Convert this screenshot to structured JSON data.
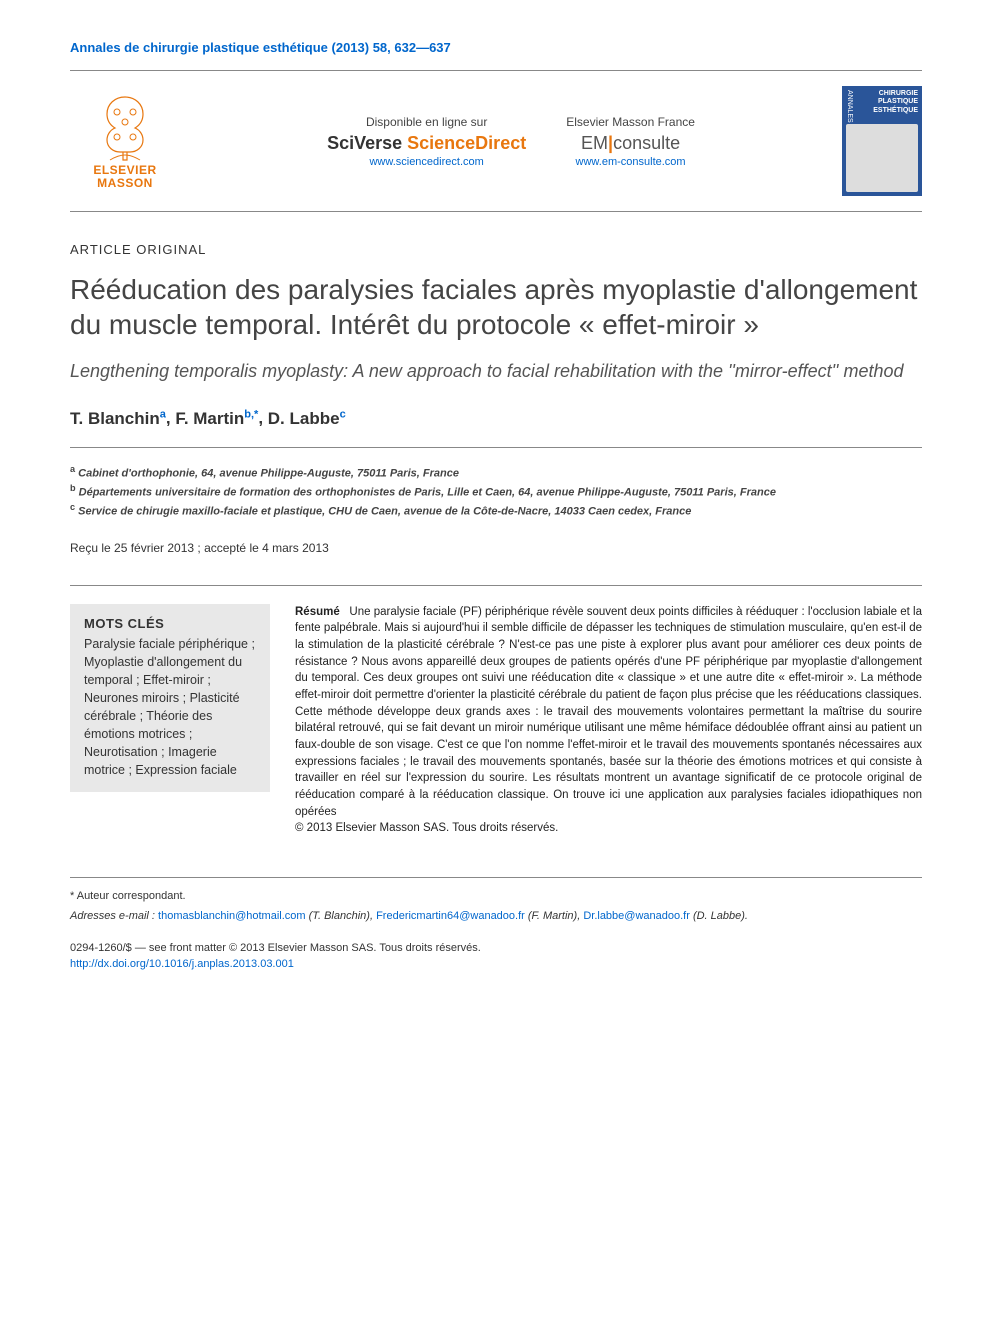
{
  "journal_ref": "Annales de chirurgie plastique esthétique (2013) 58, 632—637",
  "header": {
    "publisher_name_1": "ELSEVIER",
    "publisher_name_2": "MASSON",
    "col1": {
      "label": "Disponible en ligne sur",
      "brand_pre": "SciVerse ",
      "brand_post": "ScienceDirect",
      "url": "www.sciencedirect.com"
    },
    "col2": {
      "label": "Elsevier Masson France",
      "em_text_1": "EM",
      "em_text_2": "consulte",
      "url": "www.em-consulte.com"
    },
    "cover": {
      "annales": "ANNALES",
      "title": "CHIRURGIE PLASTIQUE ESTHÉTIQUE"
    }
  },
  "article_type": "ARTICLE ORIGINAL",
  "title": "Rééducation des paralysies faciales après myoplastie d'allongement du muscle temporal. Intérêt du protocole « effet-miroir »",
  "subtitle": "Lengthening temporalis myoplasty: A new approach to facial rehabilitation with the ''mirror-effect'' method",
  "authors": [
    {
      "name": "T. Blanchin",
      "sup": "a"
    },
    {
      "name": "F. Martin",
      "sup": "b,*"
    },
    {
      "name": "D. Labbe",
      "sup": "c"
    }
  ],
  "affiliations": [
    {
      "sup": "a",
      "text": "Cabinet d'orthophonie, 64, avenue Philippe-Auguste, 75011 Paris, France"
    },
    {
      "sup": "b",
      "text": "Départements universitaire de formation des orthophonistes de Paris, Lille et Caen, 64, avenue Philippe-Auguste, 75011 Paris, France"
    },
    {
      "sup": "c",
      "text": "Service de chirugie maxillo-faciale et plastique, CHU de Caen, avenue de la Côte-de-Nacre, 14033 Caen cedex, France"
    }
  ],
  "dates": "Reçu le 25 février 2013 ; accepté le 4 mars 2013",
  "keywords": {
    "title": "MOTS CLÉS",
    "items": "Paralysie faciale périphérique ; Myoplastie d'allongement du temporal ; Effet-miroir ; Neurones miroirs ; Plasticité cérébrale ; Théorie des émotions motrices ; Neurotisation ; Imagerie motrice ; Expression faciale"
  },
  "abstract": {
    "label": "Résumé",
    "text": "Une paralysie faciale (PF) périphérique révèle souvent deux points difficiles à rééduquer : l'occlusion labiale et la fente palpébrale. Mais si aujourd'hui il semble difficile de dépasser les techniques de stimulation musculaire, qu'en est-il de la stimulation de la plasticité cérébrale ? N'est-ce pas une piste à explorer plus avant pour améliorer ces deux points de résistance ? Nous avons appareillé deux groupes de patients opérés d'une PF périphérique par myoplastie d'allongement du temporal. Ces deux groupes ont suivi une rééducation dite « classique » et une autre dite « effet-miroir ». La méthode effet-miroir doit permettre d'orienter la plasticité cérébrale du patient de façon plus précise que les rééducations classiques. Cette méthode développe deux grands axes : le travail des mouvements volontaires permettant la maîtrise du sourire bilatéral retrouvé, qui se fait devant un miroir numérique utilisant une même hémiface dédoublée offrant ainsi au patient un faux-double de son visage. C'est ce que l'on nomme l'effet-miroir et le travail des mouvements spontanés nécessaires aux expressions faciales ; le travail des mouvements spontanés, basée sur la théorie des émotions motrices et qui consiste à travailler en réel sur l'expression du sourire. Les résultats montrent un avantage significatif de ce protocole original de rééducation comparé à la rééducation classique. On trouve ici une application aux paralysies faciales idiopathiques non opérées",
    "copyright": "© 2013 Elsevier Masson SAS. Tous droits réservés."
  },
  "footer": {
    "corresp": "* Auteur correspondant.",
    "emails_label": "Adresses e-mail :",
    "emails": [
      {
        "addr": "thomasblanchin@hotmail.com",
        "who": "(T. Blanchin)"
      },
      {
        "addr": "Fredericmartin64@wanadoo.fr",
        "who": "(F. Martin)"
      },
      {
        "addr": "Dr.labbe@wanadoo.fr",
        "who": "(D. Labbe)"
      }
    ],
    "issn": "0294-1260/$ — see front matter © 2013 Elsevier Masson SAS. Tous droits réservés.",
    "doi": "http://dx.doi.org/10.1016/j.anplas.2013.03.001"
  },
  "colors": {
    "link": "#0066cc",
    "orange": "#e8770f",
    "cover_bg": "#2a5599",
    "keyword_bg": "#e8e8e8"
  }
}
